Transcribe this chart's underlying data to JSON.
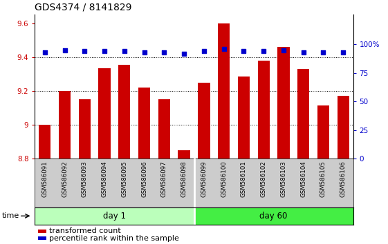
{
  "title": "GDS4374 / 8141829",
  "samples": [
    "GSM586091",
    "GSM586092",
    "GSM586093",
    "GSM586094",
    "GSM586095",
    "GSM586096",
    "GSM586097",
    "GSM586098",
    "GSM586099",
    "GSM586100",
    "GSM586101",
    "GSM586102",
    "GSM586103",
    "GSM586104",
    "GSM586105",
    "GSM586106"
  ],
  "bar_values": [
    9.0,
    9.2,
    9.15,
    9.335,
    9.355,
    9.22,
    9.15,
    8.85,
    9.25,
    9.6,
    9.285,
    9.38,
    9.46,
    9.33,
    9.115,
    9.17
  ],
  "percentile_values": [
    93,
    95,
    94,
    94,
    94,
    93,
    93,
    92,
    94,
    96,
    94,
    94,
    95,
    93,
    93,
    93
  ],
  "bar_color": "#cc0000",
  "percentile_color": "#0000cc",
  "base_value": 8.8,
  "ylim_left": [
    8.8,
    9.65
  ],
  "ylim_right": [
    0,
    126
  ],
  "yticks_left": [
    8.8,
    9.0,
    9.2,
    9.4,
    9.6
  ],
  "ytick_labels_left": [
    "8.8",
    "9",
    "9.2",
    "9.4",
    "9.6"
  ],
  "yticks_right": [
    0,
    25,
    50,
    75,
    100
  ],
  "ytick_labels_right": [
    "0",
    "25",
    "50",
    "75",
    "100%"
  ],
  "grid_lines": [
    9.0,
    9.2,
    9.4
  ],
  "day1_samples": 8,
  "day60_samples": 8,
  "day1_label": "day 1",
  "day60_label": "day 60",
  "time_label": "time",
  "legend_bar_label": "transformed count",
  "legend_pct_label": "percentile rank within the sample",
  "bar_width": 0.6,
  "bgcolor_plot": "#ffffff",
  "day1_color": "#bbffbb",
  "day60_color": "#44ee44",
  "xlabel_area_color": "#cccccc",
  "title_fontsize": 10,
  "tick_fontsize": 7.5,
  "legend_fontsize": 8
}
